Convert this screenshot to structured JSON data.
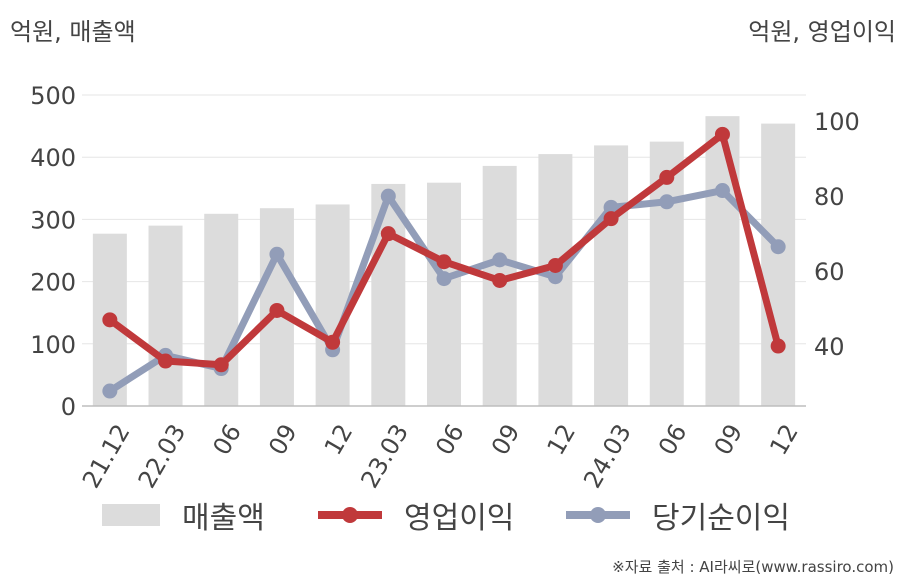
{
  "units": {
    "left": "억원, 매출액",
    "right": "억원, 영업이익"
  },
  "chart_data": {
    "type": "bar",
    "categories": [
      "21.12",
      "22.03",
      "06",
      "09",
      "12",
      "23.03",
      "06",
      "09",
      "12",
      "24.03",
      "06",
      "09",
      "12"
    ],
    "y_left": {
      "ticks": [
        "0",
        "100",
        "200",
        "300",
        "400",
        "500"
      ],
      "ylim": [
        0,
        500
      ]
    },
    "y_right": {
      "ticks": [
        "40",
        "60",
        "80",
        "100"
      ],
      "ylim": [
        24,
        107
      ]
    },
    "grid": true,
    "legend_position": "bottom",
    "series": [
      {
        "name": "매출액",
        "type": "bar",
        "axis": "left",
        "color": "#dcdcdc",
        "values": [
          277,
          290,
          309,
          318,
          324,
          357,
          359,
          386,
          405,
          419,
          425,
          466,
          454
        ]
      },
      {
        "name": "영업이익",
        "type": "line",
        "axis": "right",
        "color": "#c0393b",
        "values": [
          47,
          36,
          35,
          49.5,
          41,
          70,
          62.5,
          57.5,
          61.5,
          74,
          85,
          96.5,
          40
        ]
      },
      {
        "name": "당기순이익",
        "type": "line",
        "axis": "right",
        "color": "#929db8",
        "values": [
          28,
          37.5,
          34,
          64.5,
          39,
          80,
          58,
          63,
          58.5,
          77,
          78.5,
          81.5,
          66.5
        ]
      }
    ]
  },
  "source": "※자료 출처 : AI라씨로(www.rassiro.com)"
}
